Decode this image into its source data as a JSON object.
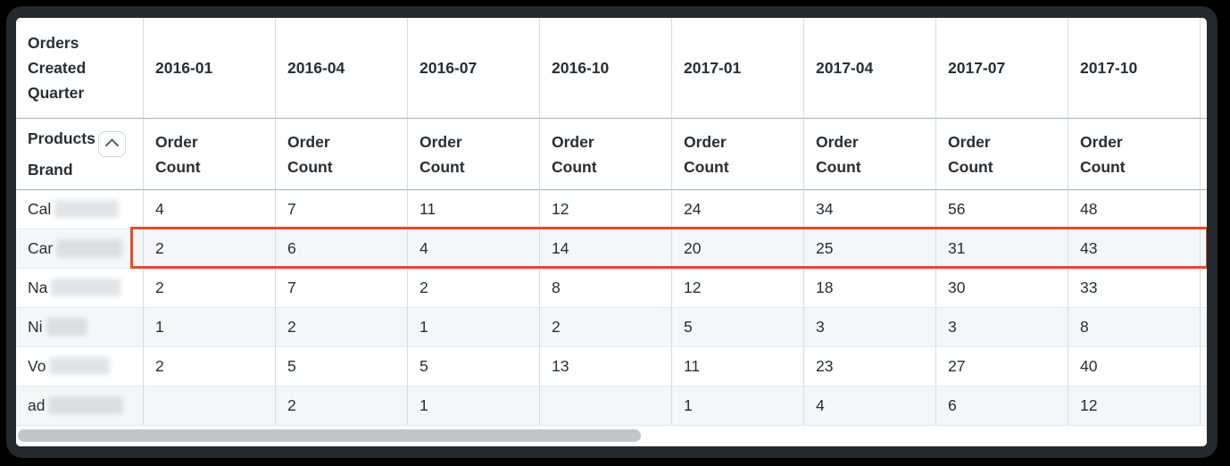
{
  "table": {
    "corner_header": "Orders Created Quarter",
    "row_dimension": {
      "line1": "Products",
      "line2": "Brand",
      "sort_icon": "chevron-up-icon"
    },
    "measure_label": "Order Count",
    "quarters": [
      "2016-01",
      "2016-04",
      "2016-07",
      "2016-10",
      "2017-01",
      "2017-04",
      "2017-07",
      "2017-10"
    ],
    "rows": [
      {
        "brand_prefix": "Cal",
        "redacted": true,
        "values": [
          "4",
          "7",
          "11",
          "12",
          "24",
          "34",
          "56",
          "48"
        ],
        "highlighted": false
      },
      {
        "brand_prefix": "Car",
        "redacted": true,
        "values": [
          "2",
          "6",
          "4",
          "14",
          "20",
          "25",
          "31",
          "43"
        ],
        "highlighted": true
      },
      {
        "brand_prefix": "Na",
        "redacted": true,
        "values": [
          "2",
          "7",
          "2",
          "8",
          "12",
          "18",
          "30",
          "33"
        ],
        "highlighted": false
      },
      {
        "brand_prefix": "Ni",
        "redacted": true,
        "values": [
          "1",
          "2",
          "1",
          "2",
          "5",
          "3",
          "3",
          "8"
        ],
        "highlighted": false
      },
      {
        "brand_prefix": "Vo",
        "redacted": true,
        "values": [
          "2",
          "5",
          "5",
          "13",
          "11",
          "23",
          "27",
          "40"
        ],
        "highlighted": false
      },
      {
        "brand_prefix": "ad",
        "redacted": true,
        "values": [
          "",
          "2",
          "1",
          "",
          "1",
          "4",
          "6",
          "12"
        ],
        "highlighted": false
      }
    ]
  },
  "colors": {
    "highlight_border": "#e9492c",
    "window_frame": "#24292d",
    "text": "#272e34",
    "row_alt_background": "#f5f6f8",
    "scrollbar_thumb": "#c3c5c7"
  }
}
